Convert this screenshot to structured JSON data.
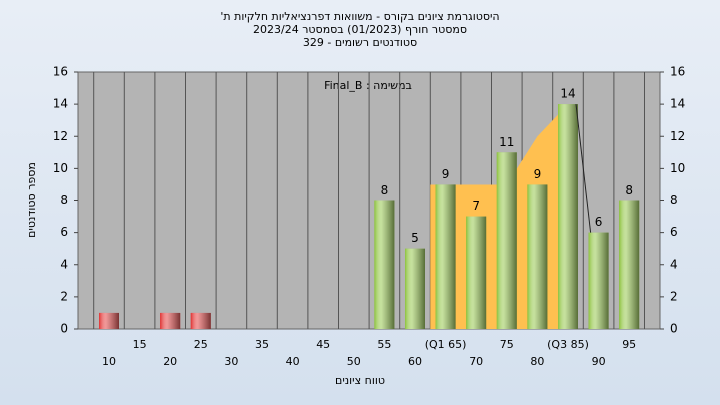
{
  "chart_data": {
    "type": "bar",
    "title": [
      "היסטוגרמת ציונים בקורס - משוואות דפרנציאליות חלקיות ת'",
      "2023/24  סמסטר חורף  (01/2023)  בסמסטר",
      "329 - סטודנטים רשומים"
    ],
    "annotation": "Final_B : במשימה",
    "y_label": "מספר סטודנטים",
    "x_label": "טווח ציונים",
    "categories": [
      "10",
      "15",
      "20",
      "25",
      "30",
      "35",
      "40",
      "45",
      "50",
      "55",
      "60",
      "(Q1 65)",
      "70",
      "75",
      "80",
      "(Q3 85)",
      "90",
      "95"
    ],
    "values": [
      1,
      0,
      1,
      1,
      0,
      0,
      0,
      0,
      0,
      8,
      5,
      9,
      7,
      11,
      9,
      14,
      6,
      8
    ],
    "colors": [
      "#e03030",
      "#e03030",
      "#e03030",
      "#e03030",
      "#e03030",
      "#e03030",
      "#e03030",
      "#e03030",
      "#e03030",
      "#8cc23c",
      "#8cc23c",
      "#8cc23c",
      "#8cc23c",
      "#8cc23c",
      "#8cc23c",
      "#8cc23c",
      "#8cc23c",
      "#8cc23c"
    ],
    "quartile_area": {
      "color": "#ffc050",
      "start": 11,
      "values": [
        9,
        9,
        9,
        12,
        14
      ]
    },
    "ylim": [
      0,
      16
    ],
    "yticks": [
      0,
      2,
      4,
      6,
      8,
      10,
      12,
      14,
      16
    ],
    "grid": true
  }
}
